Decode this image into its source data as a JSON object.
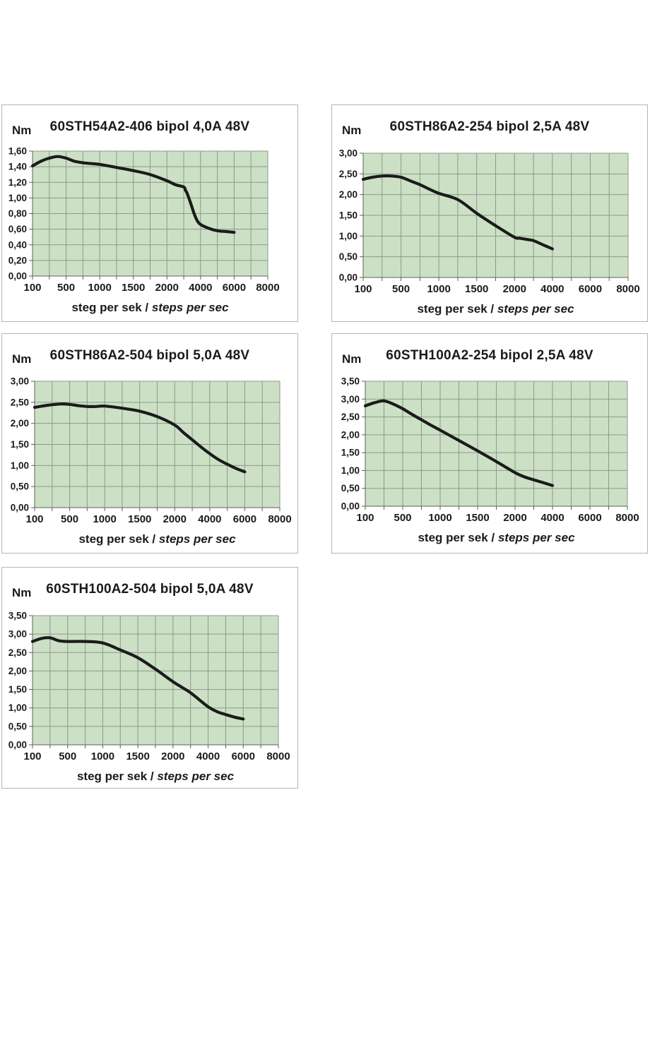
{
  "page": {
    "background": "#ffffff"
  },
  "colors": {
    "plot_bg": "#cce0c6",
    "grid": "#8c998c",
    "axis": "#5f5f5f",
    "curve": "#1b1b1b",
    "panel_border": "#b5b5b5",
    "text": "#1a1a1a"
  },
  "chart_data": [
    {
      "type": "line",
      "title": "60STH54A2-406 bipol 4,0A 48V",
      "ylabel": "Nm",
      "xlabel": "steg per sek / steps per sec",
      "xlabel_normal": "steg per sek / ",
      "xlabel_italic": "steps per sec",
      "x_ticks": [
        100,
        500,
        1000,
        1500,
        2000,
        4000,
        6000,
        8000
      ],
      "x_tick_labels": [
        "100",
        "500",
        "1000",
        "1500",
        "2000",
        "4000",
        "6000",
        "8000"
      ],
      "x_axis_scale": "piecewise-linear: equal spacing between listed ticks, minor gridline at each midpoint",
      "ylim": [
        0,
        1.6
      ],
      "y_step": 0.2,
      "y_tick_labels": [
        "1,60",
        "1,40",
        "1,20",
        "1,00",
        "0,80",
        "0,60",
        "0,40",
        "0,20",
        "0,00"
      ],
      "grid": true,
      "series": [
        {
          "name": "torque",
          "points": [
            [
              100,
              1.41
            ],
            [
              200,
              1.47
            ],
            [
              300,
              1.51
            ],
            [
              400,
              1.53
            ],
            [
              500,
              1.51
            ],
            [
              625,
              1.47
            ],
            [
              750,
              1.45
            ],
            [
              875,
              1.44
            ],
            [
              1000,
              1.43
            ],
            [
              1250,
              1.39
            ],
            [
              1500,
              1.35
            ],
            [
              1750,
              1.3
            ],
            [
              2000,
              1.22
            ],
            [
              2500,
              1.17
            ],
            [
              3000,
              1.14
            ],
            [
              3100,
              1.1
            ],
            [
              3200,
              1.06
            ],
            [
              3400,
              0.94
            ],
            [
              3600,
              0.81
            ],
            [
              3800,
              0.71
            ],
            [
              4000,
              0.66
            ],
            [
              4500,
              0.61
            ],
            [
              5000,
              0.58
            ],
            [
              5500,
              0.57
            ],
            [
              6000,
              0.56
            ]
          ]
        }
      ]
    },
    {
      "type": "line",
      "title": "60STH86A2-254 bipol 2,5A 48V",
      "ylabel": "Nm",
      "xlabel": "steg per sek / steps per sec",
      "xlabel_normal": "steg per sek / ",
      "xlabel_italic": "steps per sec",
      "x_ticks": [
        100,
        500,
        1000,
        1500,
        2000,
        4000,
        6000,
        8000
      ],
      "x_tick_labels": [
        "100",
        "500",
        "1000",
        "1500",
        "2000",
        "4000",
        "6000",
        "8000"
      ],
      "x_axis_scale": "piecewise-linear: equal spacing between listed ticks, minor gridline at each midpoint",
      "ylim": [
        0,
        3.0
      ],
      "y_step": 0.5,
      "y_tick_labels": [
        "3,00",
        "2,50",
        "2,00",
        "1,50",
        "1,00",
        "0,50",
        "0,00"
      ],
      "grid": true,
      "series": [
        {
          "name": "torque",
          "points": [
            [
              100,
              2.37
            ],
            [
              200,
              2.42
            ],
            [
              300,
              2.45
            ],
            [
              400,
              2.45
            ],
            [
              500,
              2.42
            ],
            [
              625,
              2.33
            ],
            [
              750,
              2.24
            ],
            [
              875,
              2.13
            ],
            [
              1000,
              2.03
            ],
            [
              1250,
              1.88
            ],
            [
              1500,
              1.55
            ],
            [
              1750,
              1.25
            ],
            [
              2000,
              0.97
            ],
            [
              2250,
              0.95
            ],
            [
              2500,
              0.93
            ],
            [
              2750,
              0.91
            ],
            [
              3000,
              0.89
            ],
            [
              3500,
              0.79
            ],
            [
              4000,
              0.69
            ]
          ]
        }
      ]
    },
    {
      "type": "line",
      "title": "60STH86A2-504 bipol 5,0A 48V",
      "ylabel": "Nm",
      "xlabel": "steg per sek / steps per sec",
      "xlabel_normal": "steg per sek / ",
      "xlabel_italic": "steps per sec",
      "x_ticks": [
        100,
        500,
        1000,
        1500,
        2000,
        4000,
        6000,
        8000
      ],
      "x_tick_labels": [
        "100",
        "500",
        "1000",
        "1500",
        "2000",
        "4000",
        "6000",
        "8000"
      ],
      "x_axis_scale": "piecewise-linear: equal spacing between listed ticks, minor gridline at each midpoint",
      "ylim": [
        0,
        3.0
      ],
      "y_step": 0.5,
      "y_tick_labels": [
        "3,00",
        "2,50",
        "2,00",
        "1,50",
        "1,00",
        "0,50",
        "0,00"
      ],
      "grid": true,
      "series": [
        {
          "name": "torque",
          "points": [
            [
              100,
              2.38
            ],
            [
              250,
              2.43
            ],
            [
              400,
              2.46
            ],
            [
              500,
              2.45
            ],
            [
              625,
              2.42
            ],
            [
              750,
              2.4
            ],
            [
              875,
              2.4
            ],
            [
              1000,
              2.41
            ],
            [
              1250,
              2.36
            ],
            [
              1500,
              2.29
            ],
            [
              1750,
              2.16
            ],
            [
              2000,
              1.96
            ],
            [
              2500,
              1.78
            ],
            [
              3000,
              1.61
            ],
            [
              3500,
              1.44
            ],
            [
              4000,
              1.28
            ],
            [
              4500,
              1.14
            ],
            [
              5000,
              1.03
            ],
            [
              5500,
              0.93
            ],
            [
              6000,
              0.85
            ]
          ]
        }
      ]
    },
    {
      "type": "line",
      "title": "60STH100A2-254 bipol 2,5A 48V",
      "ylabel": "Nm",
      "xlabel": "steg per sek / steps per sec",
      "xlabel_normal": "steg per sek / ",
      "xlabel_italic": "steps per sec",
      "x_ticks": [
        100,
        500,
        1000,
        1500,
        2000,
        4000,
        6000,
        8000
      ],
      "x_tick_labels": [
        "100",
        "500",
        "1000",
        "1500",
        "2000",
        "4000",
        "6000",
        "8000"
      ],
      "x_axis_scale": "piecewise-linear: equal spacing between listed ticks, minor gridline at each midpoint",
      "ylim": [
        0,
        3.5
      ],
      "y_step": 0.5,
      "y_tick_labels": [
        "3,50",
        "3,00",
        "2,50",
        "2,00",
        "1,50",
        "1,00",
        "0,50",
        "0,00"
      ],
      "grid": true,
      "series": [
        {
          "name": "torque",
          "points": [
            [
              100,
              2.81
            ],
            [
              200,
              2.9
            ],
            [
              300,
              2.95
            ],
            [
              400,
              2.86
            ],
            [
              500,
              2.73
            ],
            [
              625,
              2.57
            ],
            [
              750,
              2.42
            ],
            [
              875,
              2.27
            ],
            [
              1000,
              2.13
            ],
            [
              1250,
              1.84
            ],
            [
              1500,
              1.55
            ],
            [
              1750,
              1.25
            ],
            [
              2000,
              0.94
            ],
            [
              2500,
              0.82
            ],
            [
              3000,
              0.74
            ],
            [
              3500,
              0.66
            ],
            [
              4000,
              0.58
            ]
          ]
        }
      ]
    },
    {
      "type": "line",
      "title": "60STH100A2-504 bipol 5,0A 48V",
      "ylabel": "Nm",
      "xlabel": "steg per sek / steps per sec",
      "xlabel_normal": "steg per sek / ",
      "xlabel_italic": "steps per sec",
      "x_ticks": [
        100,
        500,
        1000,
        1500,
        2000,
        4000,
        6000,
        8000
      ],
      "x_tick_labels": [
        "100",
        "500",
        "1000",
        "1500",
        "2000",
        "4000",
        "6000",
        "8000"
      ],
      "x_axis_scale": "piecewise-linear: equal spacing between listed ticks, minor gridline at each midpoint",
      "ylim": [
        0,
        3.5
      ],
      "y_step": 0.5,
      "y_tick_labels": [
        "3,50",
        "3,00",
        "2,50",
        "2,00",
        "1,50",
        "1,00",
        "0,50",
        "0,00"
      ],
      "grid": true,
      "series": [
        {
          "name": "torque",
          "points": [
            [
              100,
              2.8
            ],
            [
              200,
              2.88
            ],
            [
              300,
              2.9
            ],
            [
              400,
              2.82
            ],
            [
              500,
              2.8
            ],
            [
              750,
              2.8
            ],
            [
              1000,
              2.76
            ],
            [
              1250,
              2.57
            ],
            [
              1500,
              2.36
            ],
            [
              1750,
              2.05
            ],
            [
              2000,
              1.71
            ],
            [
              2500,
              1.56
            ],
            [
              3000,
              1.41
            ],
            [
              3500,
              1.22
            ],
            [
              4000,
              1.03
            ],
            [
              4500,
              0.9
            ],
            [
              5000,
              0.82
            ],
            [
              5500,
              0.75
            ],
            [
              6000,
              0.7
            ]
          ]
        }
      ]
    }
  ]
}
